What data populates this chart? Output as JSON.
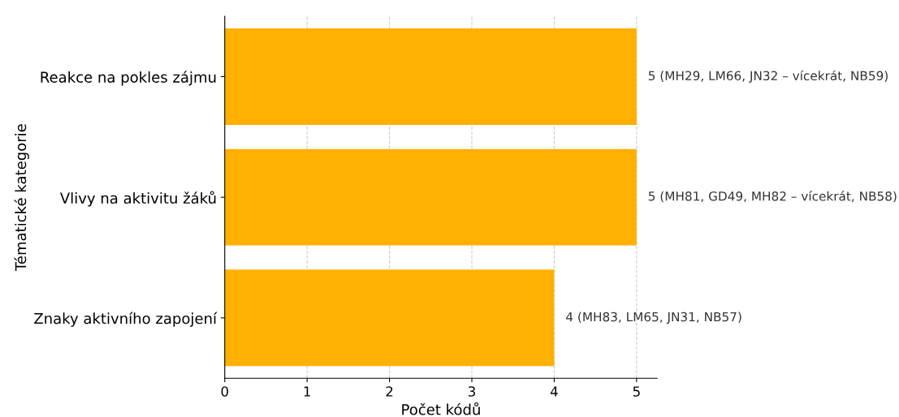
{
  "chart_data": {
    "type": "bar",
    "orientation": "horizontal",
    "xlabel": "Počet kódů",
    "ylabel": "Tématické kategorie",
    "categories": [
      "Reakce na pokles zájmu",
      "Vlivy na aktivitu žáků",
      "Znaky aktivního zapojení"
    ],
    "values": [
      5,
      5,
      4
    ],
    "color": "#ffb000",
    "value_labels": [
      "5 (MH29, LM66, JN32 – vícekrát, NB59)",
      "5 (MH81, GD49, MH82 – vícekrát, NB58)",
      "4 (MH83, LM65, JN31, NB57)"
    ],
    "xlim": [
      0,
      5.25
    ],
    "xticks": [
      0,
      1,
      2,
      3,
      4,
      5
    ],
    "grid": "x"
  }
}
